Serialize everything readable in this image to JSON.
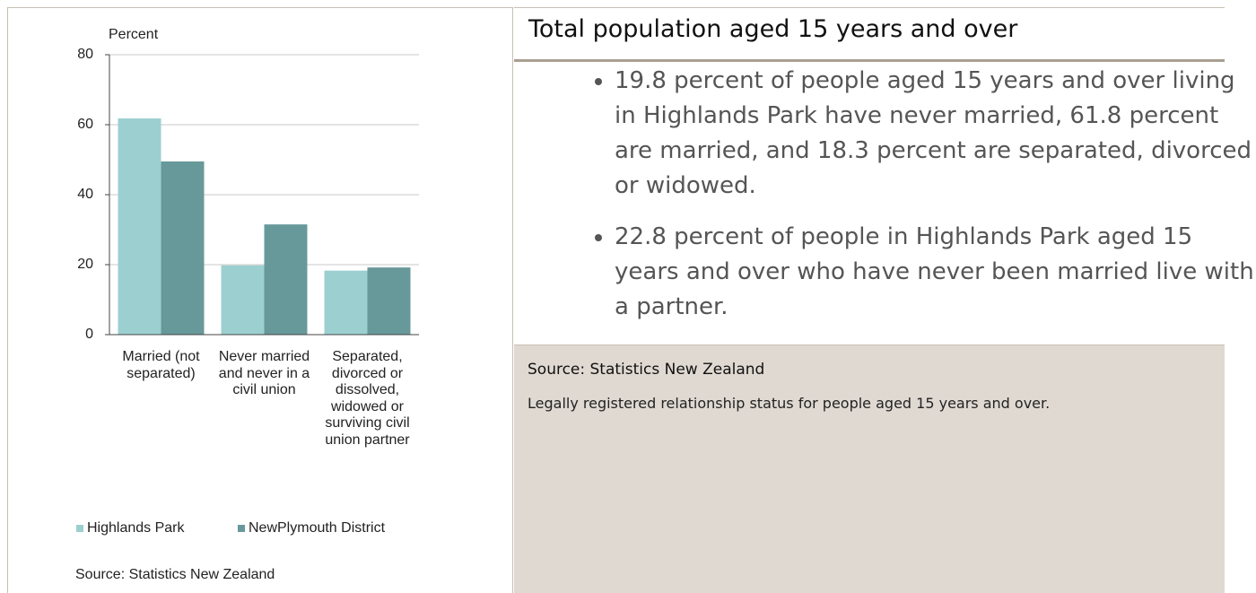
{
  "chart_data": {
    "type": "bar",
    "y_label": "Percent",
    "categories": [
      "Married (not separated)",
      "Never married and never in a civil union",
      "Separated, divorced or dissolved, widowed or surviving civil union partner"
    ],
    "series": [
      {
        "name": "Highlands Park",
        "color": "#9ccfd0",
        "values": [
          61.8,
          19.8,
          18.3
        ]
      },
      {
        "name": "NewPlymouth District",
        "color": "#68999a",
        "values": [
          49.5,
          31.5,
          19.2
        ]
      }
    ],
    "ylim": [
      0,
      80
    ],
    "yticks": [
      0,
      20,
      40,
      60,
      80
    ],
    "grid": true,
    "source": "Source: Statistics New Zealand"
  },
  "panel": {
    "title": "Total population aged 15 years and over",
    "bullets": [
      "19.8 percent of people aged 15 years and over living in Highlands Park have never married, 61.8 percent are married, and 18.3 percent are separated, divorced or widowed.",
      "22.8 percent of people in Highlands Park aged 15 years and over who have never been married live with a partner."
    ],
    "source": "Source: Statistics New Zealand",
    "note": "Legally registered relationship status for people aged 15 years and over."
  }
}
